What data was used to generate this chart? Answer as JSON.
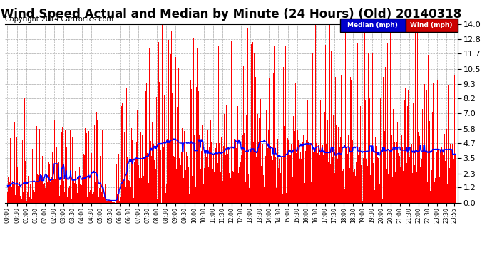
{
  "title": "Wind Speed Actual and Median by Minute (24 Hours) (Old) 20140318",
  "copyright": "Copyright 2014 Cartronics.com",
  "yticks": [
    0.0,
    1.2,
    2.3,
    3.5,
    4.7,
    5.8,
    7.0,
    8.2,
    9.3,
    10.5,
    11.7,
    12.8,
    14.0
  ],
  "ylim": [
    0.0,
    14.0
  ],
  "legend_median_color": "#0000cc",
  "legend_wind_color": "#cc0000",
  "legend_median_label": "Median (mph)",
  "legend_wind_label": "Wind (mph)",
  "background_color": "#ffffff",
  "grid_color": "#aaaaaa",
  "bar_color": "#ff0000",
  "line_color": "#0000ff",
  "title_fontsize": 12,
  "copyright_fontsize": 7,
  "n_minutes": 1440,
  "seed": 99
}
